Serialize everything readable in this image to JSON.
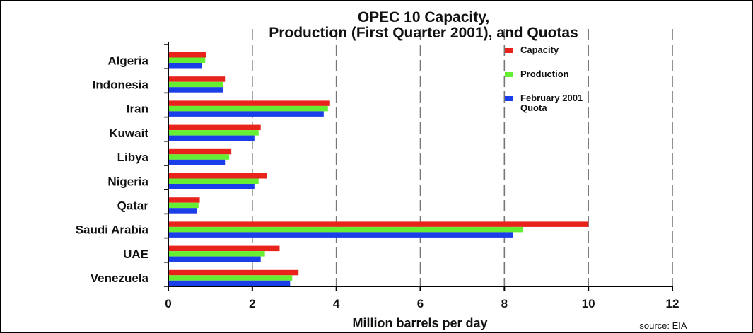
{
  "chart_data": {
    "type": "bar",
    "orientation": "horizontal",
    "title_lines": [
      "OPEC 10 Capacity,",
      "Production (First Quarter 2001), and Quotas"
    ],
    "xlabel": "Million barrels per day",
    "ylabel": "",
    "source": "source: EIA",
    "categories": [
      "Algeria",
      "Indonesia",
      "Iran",
      "Kuwait",
      "Libya",
      "Nigeria",
      "Qatar",
      "Saudi Arabia",
      "UAE",
      "Venezuela"
    ],
    "series": [
      {
        "name": "Capacity",
        "color": "#e8231c",
        "values": [
          0.9,
          1.35,
          3.85,
          2.2,
          1.5,
          2.35,
          0.75,
          10.0,
          2.65,
          3.1
        ]
      },
      {
        "name": "Production",
        "color": "#66ee33",
        "values": [
          0.88,
          1.3,
          3.8,
          2.15,
          1.45,
          2.15,
          0.72,
          8.45,
          2.3,
          2.95
        ]
      },
      {
        "name": "February 2001 Quota",
        "name_lines": [
          "February 2001",
          "Quota"
        ],
        "color": "#1a3ee8",
        "values": [
          0.8,
          1.3,
          3.7,
          2.05,
          1.35,
          2.05,
          0.68,
          8.2,
          2.2,
          2.9
        ]
      }
    ],
    "xlim": [
      0,
      12
    ],
    "xticks": [
      0,
      2,
      4,
      6,
      8,
      10,
      12
    ],
    "grid": "vertical dashed",
    "legend_position": "top-right"
  }
}
